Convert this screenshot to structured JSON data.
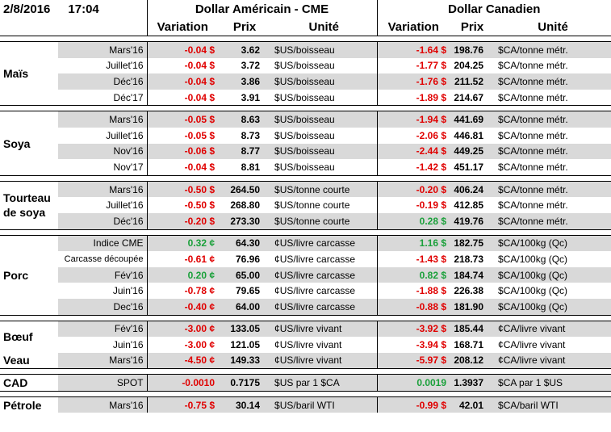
{
  "header": {
    "date": "2/8/2016",
    "time": "17:04",
    "usd_title": "Dollar Américain - CME",
    "cad_title": "Dollar Canadien",
    "columns": [
      "Variation",
      "Prix",
      "Unité",
      "Variation",
      "Prix",
      "Unité"
    ]
  },
  "groups": [
    {
      "label": "Maïs",
      "rows": [
        [
          "Mars'16",
          "-0.04 $",
          "3.62",
          "$US/boisseau",
          "-1.64 $",
          "198.76",
          "$CA/tonne métr."
        ],
        [
          "Juillet'16",
          "-0.04 $",
          "3.72",
          "$US/boisseau",
          "-1.77 $",
          "204.25",
          "$CA/tonne métr."
        ],
        [
          "Déc'16",
          "-0.04 $",
          "3.86",
          "$US/boisseau",
          "-1.76 $",
          "211.52",
          "$CA/tonne métr."
        ],
        [
          "Déc'17",
          "-0.04 $",
          "3.91",
          "$US/boisseau",
          "-1.89 $",
          "214.67",
          "$CA/tonne métr."
        ]
      ]
    },
    {
      "label": "Soya",
      "rows": [
        [
          "Mars'16",
          "-0.05 $",
          "8.63",
          "$US/boisseau",
          "-1.94 $",
          "441.69",
          "$CA/tonne métr."
        ],
        [
          "Juillet'16",
          "-0.05 $",
          "8.73",
          "$US/boisseau",
          "-2.06 $",
          "446.81",
          "$CA/tonne métr."
        ],
        [
          "Nov'16",
          "-0.06 $",
          "8.77",
          "$US/boisseau",
          "-2.44 $",
          "449.25",
          "$CA/tonne métr."
        ],
        [
          "Nov'17",
          "-0.04 $",
          "8.81",
          "$US/boisseau",
          "-1.42 $",
          "451.17",
          "$CA/tonne métr."
        ]
      ]
    },
    {
      "label": "Tourteau de soya",
      "rows": [
        [
          "Mars'16",
          "-0.50 $",
          "264.50",
          "$US/tonne courte",
          "-0.20 $",
          "406.24",
          "$CA/tonne métr."
        ],
        [
          "Juillet'16",
          "-0.50 $",
          "268.80",
          "$US/tonne courte",
          "-0.19 $",
          "412.85",
          "$CA/tonne métr."
        ],
        [
          "Déc'16",
          "-0.20 $",
          "273.30",
          "$US/tonne courte",
          "0.28 $",
          "419.76",
          "$CA/tonne métr."
        ]
      ]
    },
    {
      "label": "Porc",
      "rows": [
        [
          "Indice CME",
          "0.32 ¢",
          "64.30",
          "¢US/livre carcasse",
          "1.16 $",
          "182.75",
          "$CA/100kg (Qc)"
        ],
        [
          "Carcasse découpée",
          "-0.61 ¢",
          "76.96",
          "¢US/livre carcasse",
          "-1.43 $",
          "218.73",
          "$CA/100kg (Qc)"
        ],
        [
          "Fév'16",
          "0.20 ¢",
          "65.00",
          "¢US/livre carcasse",
          "0.82 $",
          "184.74",
          "$CA/100kg (Qc)"
        ],
        [
          "Juin'16",
          "-0.78 ¢",
          "79.65",
          "¢US/livre carcasse",
          "-1.88 $",
          "226.38",
          "$CA/100kg (Qc)"
        ],
        [
          "Dec'16",
          "-0.40 ¢",
          "64.00",
          "¢US/livre carcasse",
          "-0.88 $",
          "181.90",
          "$CA/100kg (Qc)"
        ]
      ]
    },
    {
      "label": "Bœuf",
      "rows": [
        [
          "Fév'16",
          "-3.00 ¢",
          "133.05",
          "¢US/livre vivant",
          "-3.92 $",
          "185.44",
          "¢CA/livre vivant"
        ],
        [
          "Juin'16",
          "-3.00 ¢",
          "121.05",
          "¢US/livre vivant",
          "-3.94 $",
          "168.71",
          "¢CA/livre vivant"
        ]
      ]
    },
    {
      "label": "Veau",
      "rows": [
        [
          "Mars'16",
          "-4.50 ¢",
          "149.33",
          "¢US/livre vivant",
          "-5.97 $",
          "208.12",
          "¢CA/livre vivant"
        ]
      ]
    },
    {
      "label": "CAD",
      "rows": [
        [
          "SPOT",
          "-0.0010",
          "0.7175",
          "$US par 1 $CA",
          "0.0019",
          "1.3937",
          "$CA par 1 $US"
        ]
      ]
    },
    {
      "label": "Pétrole",
      "rows": [
        [
          "Mars'16",
          "-0.75 $",
          "30.14",
          "$US/baril WTI",
          "-0.99 $",
          "42.01",
          "$CA/baril WTI"
        ]
      ]
    }
  ]
}
